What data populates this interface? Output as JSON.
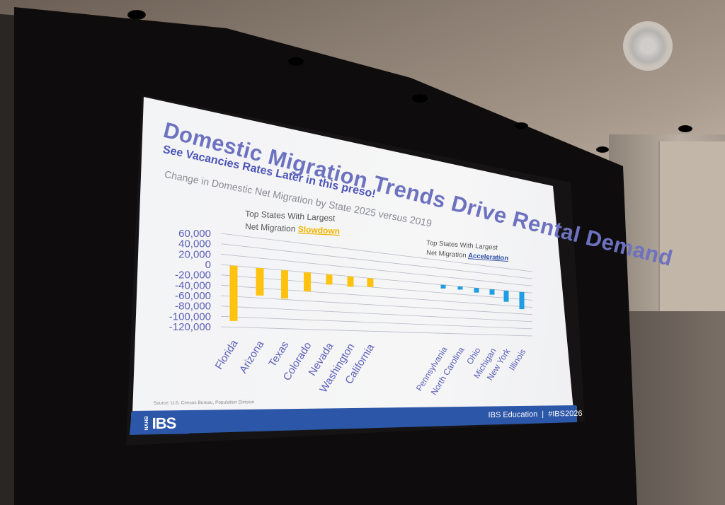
{
  "slide": {
    "title": "Domestic Migration Trends Drive Rental Demand",
    "subtitle": "See Vacancies Rates Later in this preso!",
    "description": "Change in Domestic Net Migration by State 2025 versus 2019",
    "source": "Source: U.S. Census Bureau, Population Division",
    "logo_text": "IBS",
    "logo_small": "NAHB",
    "footer_label": "IBS Education",
    "footer_tag": "#IBS2026"
  },
  "chart_data": {
    "type": "bar",
    "title": "Change in Domestic Net Migration by State 2025 versus 2019",
    "categories": [
      "Florida",
      "Arizona",
      "Texas",
      "Colorado",
      "Nevada",
      "Washington",
      "California",
      "Pennsylvania",
      "North Carolina",
      "Ohio",
      "Michigan",
      "New York",
      "Illinois"
    ],
    "values": [
      -108000,
      -55000,
      -58000,
      -40000,
      -22000,
      -23000,
      -20000,
      -9000,
      -8000,
      -12000,
      -14000,
      -30000,
      -47000
    ],
    "ylim": [
      -120000,
      60000
    ],
    "yticks": [
      "60,000",
      "40,000",
      "20,000",
      "0",
      "-20,000",
      "-40,000",
      "-60,000",
      "-80,000",
      "-100,000",
      "-120,000"
    ],
    "groups": [
      {
        "label_prefix": "Top States With Largest",
        "label_line2": "Net Migration",
        "label_emphasis": "Slowdown",
        "color": "#ffc20e",
        "count": 7
      },
      {
        "label_prefix": "Top States With Largest",
        "label_line2": "Net Migration",
        "label_emphasis": "Acceleration",
        "color": "#1e9ee0",
        "count": 6
      }
    ],
    "grid": true,
    "legend": "none"
  }
}
